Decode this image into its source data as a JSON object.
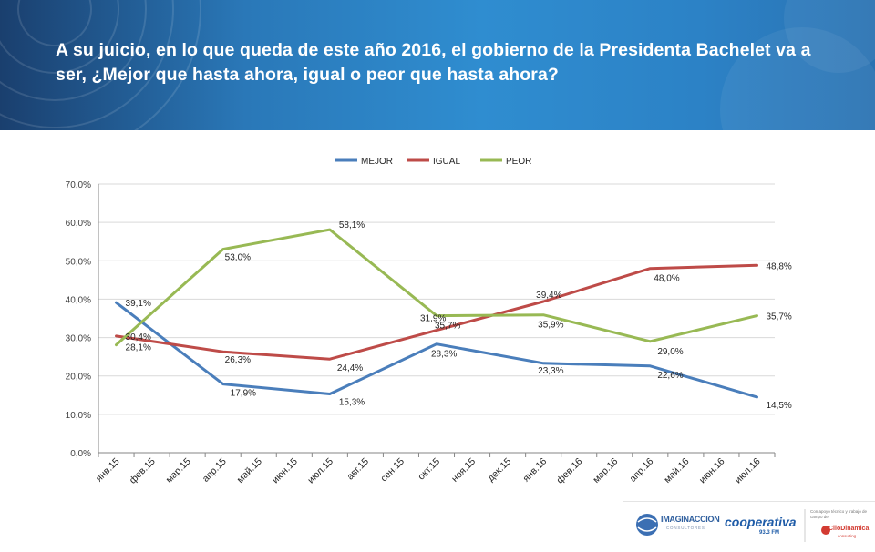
{
  "title": "A su juicio, en lo que queda de este año 2016,  el gobierno de la Presidenta Bachelet va a ser, ¿Mejor que hasta ahora, igual o  peor que hasta ahora?",
  "colors": {
    "mejor": "#4a7ebb",
    "igual": "#be4b48",
    "peor": "#98b954",
    "header": "#2f8dd0"
  },
  "chart_data": {
    "type": "line",
    "categories": [
      "янв.15",
      "фев.15",
      "мар.15",
      "апр.15",
      "май.15",
      "июн.15",
      "июл.15",
      "авг.15",
      "сен.15",
      "окт.15",
      "ноя.15",
      "дек.15",
      "янв.16",
      "фев.16",
      "мар.16",
      "апр.16",
      "май.16",
      "июн.16",
      "июл.16"
    ],
    "ylim": [
      0,
      70
    ],
    "yticks": [
      "0,0%",
      "10,0%",
      "20,0%",
      "30,0%",
      "40,0%",
      "50,0%",
      "60,0%",
      "70,0%"
    ],
    "legend_position": "top",
    "series": [
      {
        "name": "MEJOR",
        "color": "#4a7ebb",
        "points": [
          {
            "x": 0,
            "y": 39.1,
            "label": "39,1%"
          },
          {
            "x": 3,
            "y": 17.9,
            "label": "17,9%"
          },
          {
            "x": 6,
            "y": 15.3,
            "label": "15,3%"
          },
          {
            "x": 9,
            "y": 28.3,
            "label": "28,3%"
          },
          {
            "x": 12,
            "y": 23.3,
            "label": "23,3%"
          },
          {
            "x": 15,
            "y": 22.6,
            "label": "22,6%"
          },
          {
            "x": 18,
            "y": 14.5,
            "label": "14,5%"
          }
        ]
      },
      {
        "name": "IGUAL",
        "color": "#be4b48",
        "points": [
          {
            "x": 0,
            "y": 30.4,
            "label": "30,4%"
          },
          {
            "x": 3,
            "y": 26.3,
            "label": "26,3%"
          },
          {
            "x": 6,
            "y": 24.4,
            "label": "24,4%"
          },
          {
            "x": 9,
            "y": 31.9,
            "label": "31,9%"
          },
          {
            "x": 12,
            "y": 39.4,
            "label": "39,4%"
          },
          {
            "x": 15,
            "y": 48.0,
            "label": "48,0%"
          },
          {
            "x": 18,
            "y": 48.8,
            "label": "48,8%"
          }
        ]
      },
      {
        "name": "PEOR",
        "color": "#98b954",
        "points": [
          {
            "x": 0,
            "y": 28.1,
            "label": "28,1%"
          },
          {
            "x": 3,
            "y": 53.0,
            "label": "53,0%"
          },
          {
            "x": 6,
            "y": 58.1,
            "label": "58,1%"
          },
          {
            "x": 9,
            "y": 35.7,
            "label": "35,7%"
          },
          {
            "x": 12,
            "y": 35.9,
            "label": "35,9%"
          },
          {
            "x": 15,
            "y": 29.0,
            "label": "29,0%"
          },
          {
            "x": 18,
            "y": 35.7,
            "label": "35,7%"
          }
        ]
      }
    ]
  },
  "footer": {
    "logo1": "IMAGINACCION",
    "logo1_sub": "CONSULTORES",
    "logo2": "cooperativa",
    "logo2_sub": "93.3 FM",
    "logo3_note": "Con apoyo técnico y trabajo de campo de",
    "logo3": "ClioDinamica",
    "logo3_sub": "consulting"
  }
}
